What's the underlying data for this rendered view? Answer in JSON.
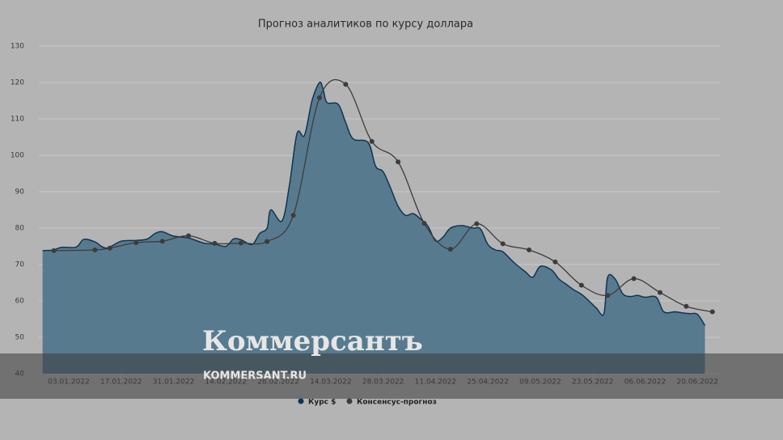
{
  "chart_data": {
    "type": "area_line",
    "title": "Прогноз аналитиков по курсу доллара",
    "xlim": [
      "26.12.2021",
      "26.06.2022"
    ],
    "xticks": [
      "03.01.2022",
      "17.01.2022",
      "31.01.2022",
      "14.02.2022",
      "28.02.2022",
      "14.03.2022",
      "28.03.2022",
      "11.04.2022",
      "25.04.2022",
      "09.05.2022",
      "23.05.2022",
      "06.06.2022",
      "20.06.2022"
    ],
    "ylim": [
      40,
      130
    ],
    "yticks": [
      40,
      50,
      60,
      70,
      80,
      90,
      100,
      110,
      120,
      130
    ],
    "grid": true,
    "series": [
      {
        "name": "Курс $",
        "color": "#0d3553",
        "fill": "#587a8f",
        "x": [
          "27.12.2021",
          "30.12.2021",
          "01.01.2022",
          "05.01.2022",
          "07.01.2022",
          "10.01.2022",
          "13.01.2022",
          "17.01.2022",
          "21.01.2022",
          "24.01.2022",
          "26.01.2022",
          "28.01.2022",
          "31.01.2022",
          "04.02.2022",
          "08.02.2022",
          "11.02.2022",
          "14.02.2022",
          "16.02.2022",
          "18.02.2022",
          "21.02.2022",
          "23.02.2022",
          "25.02.2022",
          "26.02.2022",
          "01.03.2022",
          "03.03.2022",
          "05.03.2022",
          "07.03.2022",
          "09.03.2022",
          "11.03.2022",
          "12.03.2022",
          "13.03.2022",
          "16.03.2022",
          "18.03.2022",
          "20.03.2022",
          "24.03.2022",
          "26.03.2022",
          "28.03.2022",
          "30.03.2022",
          "01.04.2022",
          "03.04.2022",
          "05.04.2022",
          "07.04.2022",
          "09.04.2022",
          "11.04.2022",
          "13.04.2022",
          "15.04.2022",
          "18.04.2022",
          "21.04.2022",
          "23.04.2022",
          "25.04.2022",
          "27.04.2022",
          "29.04.2022",
          "02.05.2022",
          "05.05.2022",
          "07.05.2022",
          "09.05.2022",
          "12.05.2022",
          "14.05.2022",
          "16.05.2022",
          "18.05.2022",
          "20.05.2022",
          "22.05.2022",
          "24.05.2022",
          "26.05.2022",
          "27.05.2022",
          "29.05.2022",
          "31.05.2022",
          "02.06.2022",
          "04.06.2022",
          "06.06.2022",
          "09.06.2022",
          "11.06.2022",
          "14.06.2022",
          "16.06.2022",
          "18.06.2022",
          "20.06.2022",
          "22.06.2022"
        ],
        "values": [
          73.8,
          74.0,
          74.7,
          74.8,
          76.9,
          76.2,
          74.5,
          76.4,
          76.6,
          77.0,
          78.5,
          79.0,
          77.8,
          77.3,
          75.9,
          75.6,
          75.0,
          77.0,
          76.8,
          75.5,
          78.5,
          80.0,
          85.0,
          82.0,
          92.0,
          106.0,
          105.5,
          115.0,
          120.0,
          118.0,
          114.5,
          114.0,
          109.0,
          104.5,
          103.5,
          97.0,
          95.5,
          91.0,
          86.0,
          83.5,
          84.0,
          82.5,
          80.5,
          76.5,
          77.5,
          80.0,
          80.7,
          80.0,
          79.8,
          75.5,
          74.0,
          73.5,
          70.5,
          68.0,
          66.5,
          69.5,
          68.5,
          66.0,
          64.5,
          63.0,
          61.8,
          60.0,
          58.0,
          56.5,
          66.5,
          66.0,
          62.0,
          61.2,
          61.5,
          61.0,
          61.0,
          57.0,
          57.0,
          56.7,
          56.5,
          56.3,
          53.2
        ]
      },
      {
        "name": "Консенсус-прогноз",
        "color": "#3c3c3c",
        "x": [
          "30.12.2021",
          "10.01.2022",
          "14.01.2022",
          "21.01.2022",
          "28.01.2022",
          "04.02.2022",
          "11.02.2022",
          "18.02.2022",
          "25.02.2022",
          "04.03.2022",
          "11.03.2022",
          "18.03.2022",
          "25.03.2022",
          "01.04.2022",
          "08.04.2022",
          "15.04.2022",
          "22.04.2022",
          "29.04.2022",
          "06.05.2022",
          "13.05.2022",
          "20.05.2022",
          "27.05.2022",
          "03.06.2022",
          "10.06.2022",
          "17.06.2022",
          "24.06.2022"
        ],
        "values": [
          73.8,
          74.0,
          74.5,
          76.0,
          76.4,
          77.9,
          75.8,
          75.9,
          76.3,
          83.5,
          115.8,
          119.5,
          103.8,
          98.2,
          81.3,
          74.2,
          81.2,
          75.7,
          74.0,
          70.7,
          64.3,
          61.5,
          66.1,
          62.3,
          58.5,
          57.0
        ]
      }
    ],
    "watermark": {
      "logo": "Коммерсантъ",
      "site": "KOMMERSANT.RU"
    }
  }
}
